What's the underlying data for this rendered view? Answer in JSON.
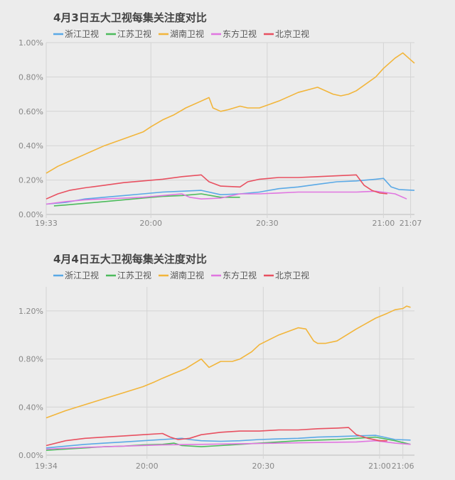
{
  "chart_data": [
    {
      "type": "line",
      "title": "4月3日五大卫视每集关注度对比",
      "legend": [
        "浙江卫视",
        "江苏卫视",
        "湖南卫视",
        "东方卫视",
        "北京卫视"
      ],
      "x_ticks": [
        "19:33",
        "20:00",
        "20:30",
        "21:00",
        "21:07"
      ],
      "x_tick_minutes": [
        0,
        27,
        57,
        87,
        94
      ],
      "x_range": [
        0,
        95
      ],
      "y_ticks": [
        "0.00%",
        "0.20%",
        "0.40%",
        "0.60%",
        "0.80%",
        "1.00%"
      ],
      "y_tick_values": [
        0,
        0.2,
        0.4,
        0.6,
        0.8,
        1.0
      ],
      "ylim": [
        0,
        1.0
      ],
      "series": [
        {
          "name": "浙江卫视",
          "color": "#5aa9e6",
          "x": [
            0,
            5,
            10,
            15,
            20,
            25,
            30,
            35,
            40,
            45,
            50,
            55,
            60,
            65,
            70,
            75,
            80,
            85,
            87,
            89,
            91,
            95
          ],
          "y": [
            0.06,
            0.07,
            0.09,
            0.1,
            0.11,
            0.12,
            0.13,
            0.135,
            0.14,
            0.115,
            0.12,
            0.13,
            0.15,
            0.16,
            0.175,
            0.19,
            0.195,
            0.205,
            0.21,
            0.16,
            0.145,
            0.14
          ]
        },
        {
          "name": "江苏卫视",
          "color": "#4cbb5c",
          "x": [
            2,
            5,
            10,
            15,
            20,
            25,
            30,
            35,
            40,
            45,
            50
          ],
          "y": [
            0.05,
            0.055,
            0.065,
            0.075,
            0.085,
            0.095,
            0.105,
            0.11,
            0.12,
            0.1,
            0.1
          ]
        },
        {
          "name": "湖南卫视",
          "color": "#f2b53a",
          "x": [
            0,
            3,
            6,
            10,
            15,
            20,
            25,
            27,
            30,
            33,
            36,
            40,
            42,
            43,
            45,
            47,
            50,
            52,
            55,
            60,
            65,
            70,
            74,
            76,
            78,
            80,
            85,
            87,
            90,
            92,
            94,
            95
          ],
          "y": [
            0.24,
            0.28,
            0.31,
            0.35,
            0.4,
            0.44,
            0.48,
            0.51,
            0.55,
            0.58,
            0.62,
            0.66,
            0.68,
            0.62,
            0.6,
            0.61,
            0.63,
            0.62,
            0.62,
            0.66,
            0.71,
            0.74,
            0.7,
            0.69,
            0.7,
            0.72,
            0.8,
            0.85,
            0.91,
            0.94,
            0.9,
            0.88
          ]
        },
        {
          "name": "东方卫视",
          "color": "#e076e0",
          "x": [
            0,
            5,
            10,
            15,
            20,
            25,
            30,
            35,
            37,
            40,
            45,
            50,
            55,
            60,
            65,
            70,
            75,
            80,
            85,
            90,
            93
          ],
          "y": [
            0.06,
            0.075,
            0.085,
            0.09,
            0.095,
            0.1,
            0.11,
            0.12,
            0.1,
            0.09,
            0.095,
            0.12,
            0.12,
            0.125,
            0.13,
            0.13,
            0.13,
            0.13,
            0.135,
            0.12,
            0.09
          ]
        },
        {
          "name": "北京卫视",
          "color": "#e85060",
          "x": [
            0,
            3,
            6,
            10,
            15,
            20,
            25,
            30,
            35,
            40,
            42,
            45,
            50,
            52,
            55,
            60,
            65,
            70,
            75,
            80,
            82,
            84,
            86,
            88
          ],
          "y": [
            0.09,
            0.12,
            0.14,
            0.155,
            0.17,
            0.185,
            0.195,
            0.205,
            0.22,
            0.23,
            0.19,
            0.165,
            0.16,
            0.19,
            0.205,
            0.215,
            0.215,
            0.22,
            0.225,
            0.23,
            0.17,
            0.14,
            0.125,
            0.12
          ]
        }
      ]
    },
    {
      "type": "line",
      "title": "4月4日五大卫视每集关注度对比",
      "legend": [
        "浙江卫视",
        "江苏卫视",
        "湖南卫视",
        "东方卫视",
        "北京卫视"
      ],
      "x_ticks": [
        "19:34",
        "20:00",
        "20:30",
        "21:00",
        "21:06"
      ],
      "x_tick_minutes": [
        0,
        26,
        56,
        86,
        92
      ],
      "x_range": [
        0,
        95
      ],
      "y_ticks": [
        "0.00%",
        "0.40%",
        "0.80%",
        "1.20%"
      ],
      "y_tick_values": [
        0,
        0.4,
        0.8,
        1.2
      ],
      "ylim": [
        0,
        1.4
      ],
      "series": [
        {
          "name": "浙江卫视",
          "color": "#5aa9e6",
          "x": [
            0,
            5,
            10,
            15,
            20,
            25,
            30,
            35,
            37,
            40,
            45,
            50,
            55,
            60,
            65,
            70,
            75,
            80,
            85,
            90,
            94
          ],
          "y": [
            0.06,
            0.075,
            0.09,
            0.1,
            0.11,
            0.12,
            0.13,
            0.14,
            0.13,
            0.12,
            0.115,
            0.12,
            0.13,
            0.135,
            0.14,
            0.15,
            0.155,
            0.16,
            0.165,
            0.13,
            0.125
          ]
        },
        {
          "name": "江苏卫视",
          "color": "#4cbb5c",
          "x": [
            0,
            5,
            10,
            15,
            20,
            25,
            30,
            33,
            35,
            40,
            45,
            50,
            55,
            60,
            65,
            70,
            75,
            80,
            85,
            90,
            94
          ],
          "y": [
            0.04,
            0.05,
            0.06,
            0.07,
            0.075,
            0.085,
            0.09,
            0.1,
            0.08,
            0.07,
            0.08,
            0.09,
            0.1,
            0.11,
            0.12,
            0.125,
            0.13,
            0.14,
            0.15,
            0.12,
            0.09
          ]
        },
        {
          "name": "湖南卫视",
          "color": "#f2b53a",
          "x": [
            0,
            5,
            10,
            15,
            20,
            25,
            28,
            30,
            33,
            36,
            38,
            40,
            42,
            45,
            48,
            50,
            53,
            55,
            60,
            65,
            67,
            69,
            70,
            72,
            75,
            80,
            85,
            88,
            90,
            92,
            93,
            94
          ],
          "y": [
            0.31,
            0.37,
            0.42,
            0.47,
            0.52,
            0.57,
            0.61,
            0.64,
            0.68,
            0.72,
            0.76,
            0.8,
            0.73,
            0.78,
            0.78,
            0.8,
            0.86,
            0.92,
            1.0,
            1.06,
            1.05,
            0.95,
            0.93,
            0.93,
            0.95,
            1.05,
            1.14,
            1.18,
            1.21,
            1.22,
            1.24,
            1.23
          ]
        },
        {
          "name": "东方卫视",
          "color": "#e076e0",
          "x": [
            0,
            10,
            20,
            30,
            40,
            50,
            60,
            70,
            80,
            85,
            90,
            94
          ],
          "y": [
            0.05,
            0.065,
            0.075,
            0.085,
            0.09,
            0.095,
            0.1,
            0.105,
            0.11,
            0.12,
            0.1,
            0.09
          ]
        },
        {
          "name": "北京卫视",
          "color": "#e85060",
          "x": [
            0,
            5,
            10,
            15,
            20,
            25,
            30,
            32,
            34,
            37,
            40,
            45,
            50,
            55,
            60,
            65,
            70,
            75,
            78,
            80,
            83,
            86,
            88
          ],
          "y": [
            0.08,
            0.12,
            0.14,
            0.15,
            0.16,
            0.17,
            0.18,
            0.15,
            0.13,
            0.14,
            0.17,
            0.19,
            0.2,
            0.2,
            0.21,
            0.21,
            0.22,
            0.225,
            0.23,
            0.17,
            0.14,
            0.12,
            0.12
          ]
        }
      ]
    }
  ]
}
